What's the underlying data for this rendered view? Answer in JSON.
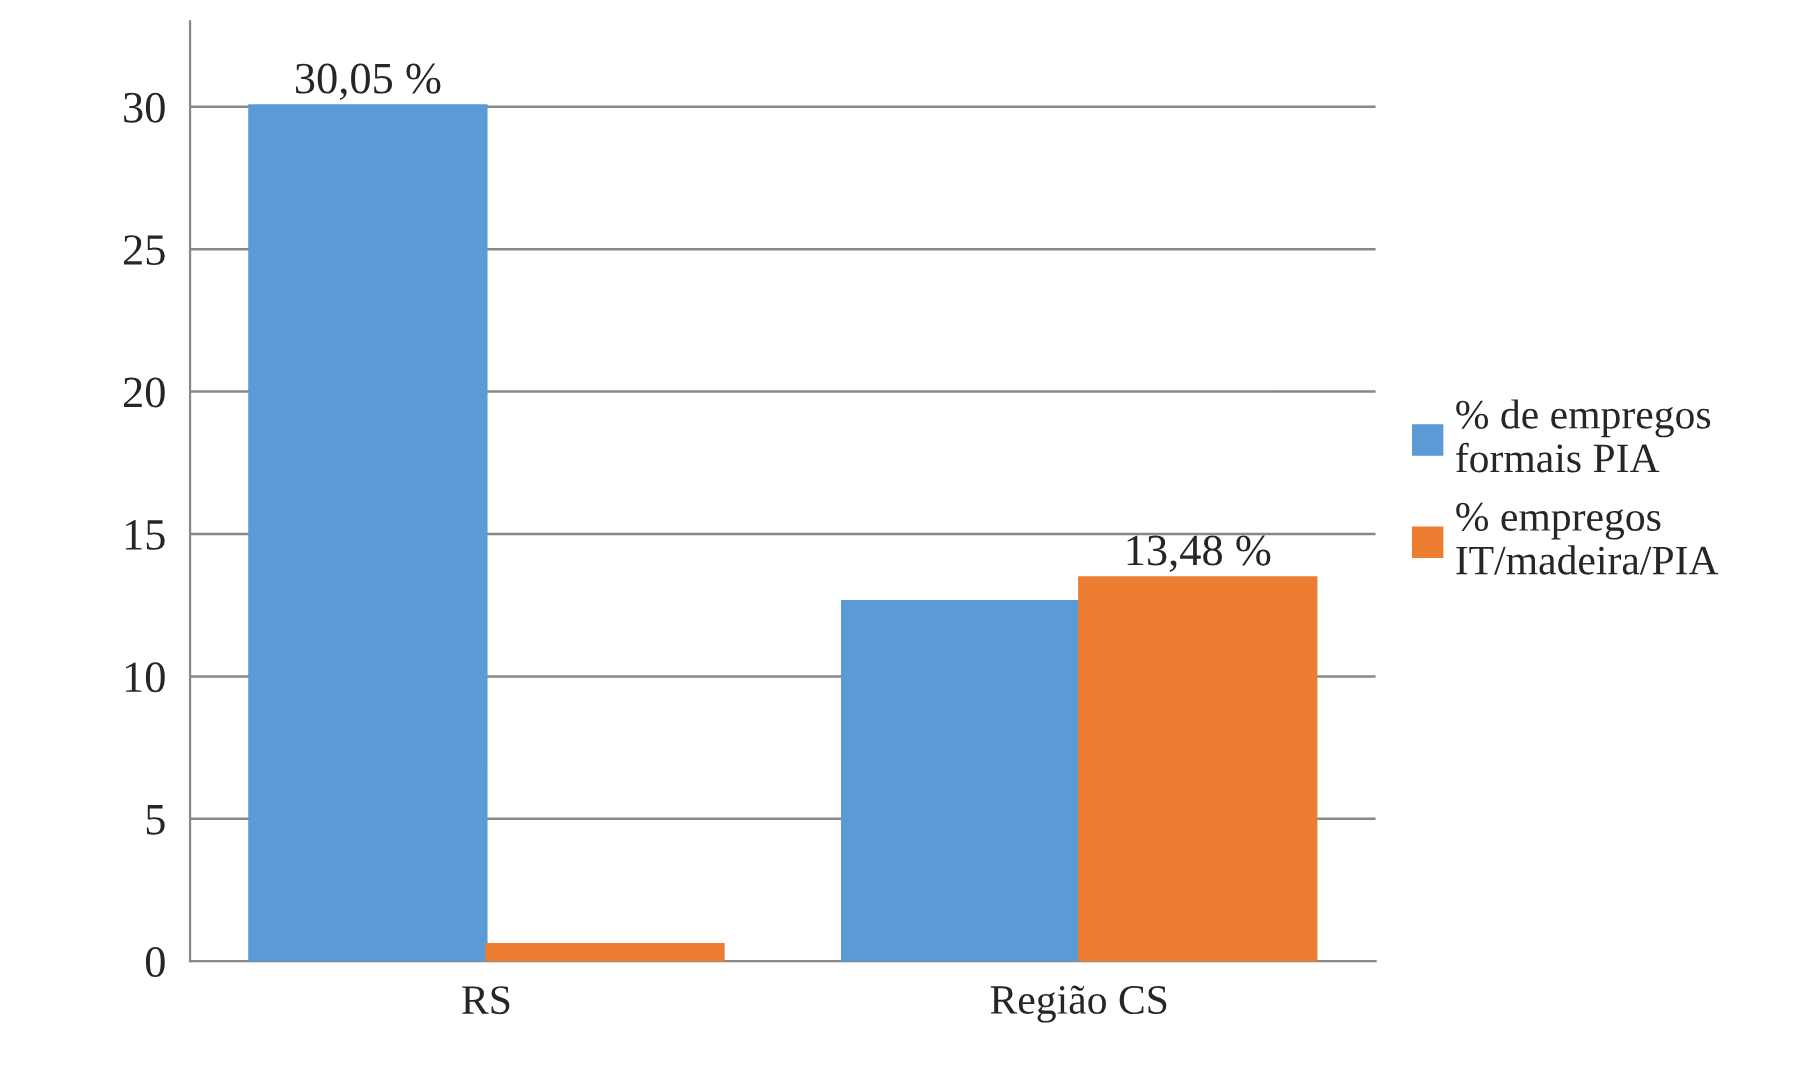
{
  "chart_data": {
    "type": "bar",
    "categories": [
      "RS",
      "Região CS"
    ],
    "series": [
      {
        "name": "% de empregos formais PIA",
        "color": "#5b9bd5",
        "values": [
          30.05,
          12.64
        ],
        "value_labels": [
          "30,05 %",
          null
        ]
      },
      {
        "name": "% empregos IT/madeira/PIA",
        "color": "#ed7d31",
        "values": [
          0.6,
          13.48
        ],
        "value_labels": [
          null,
          "13,48 %"
        ]
      }
    ],
    "ylim": [
      0,
      33
    ],
    "yticks": [
      0,
      5,
      10,
      15,
      20,
      25,
      30
    ],
    "grid": "y",
    "legend": "right"
  }
}
